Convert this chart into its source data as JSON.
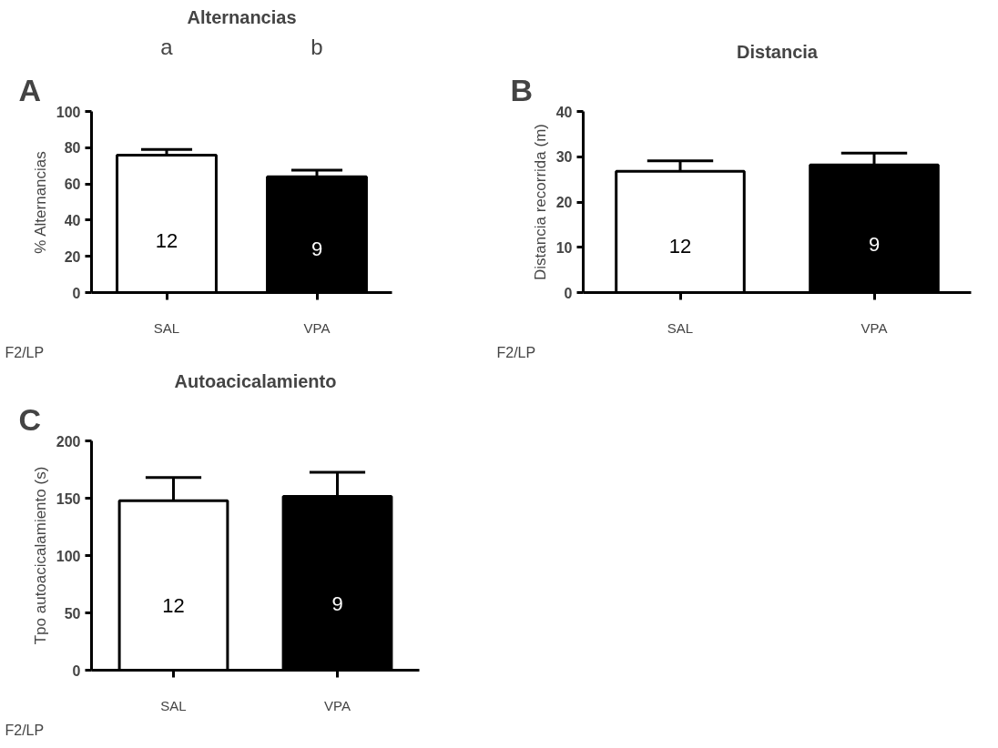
{
  "chart_data": [
    {
      "type": "bar",
      "title": "Alternancias",
      "ylabel": "% Alternancias",
      "categories": [
        "SAL",
        "VPA"
      ],
      "values": [
        75.9,
        63.9
      ],
      "colors": [
        "#ffffff",
        "#000000"
      ],
      "errors": [
        [
          75.9,
          79.0
        ],
        [
          63.9,
          67.6
        ]
      ],
      "ylim": [
        0,
        100
      ],
      "yticks": [
        0,
        20,
        40,
        60,
        80,
        100
      ],
      "annotations": [
        "A",
        "F2/LP",
        "a",
        "b",
        "12",
        "9"
      ]
    },
    {
      "type": "bar",
      "title": "Distancia",
      "ylabel": "Distancia recorrida (m)",
      "categories": [
        "SAL",
        "VPA"
      ],
      "values": [
        26.8,
        28.2
      ],
      "colors": [
        "#ffffff",
        "#000000"
      ],
      "errors": [
        [
          26.8,
          29.1
        ],
        [
          28.2,
          30.8
        ]
      ],
      "ylim": [
        0,
        40
      ],
      "yticks": [
        0,
        10,
        20,
        30,
        40
      ],
      "annotations": [
        "B",
        "F2/LP",
        "12",
        "9"
      ]
    },
    {
      "type": "bar",
      "title": "Autoacicalamiento",
      "ylabel": "Tpo autoacicalamiento (s)",
      "categories": [
        "SAL",
        "VPA"
      ],
      "values": [
        147.8,
        151.6
      ],
      "colors": [
        "#ffffff",
        "#000000"
      ],
      "errors": [
        [
          147.8,
          168.0
        ],
        [
          151.6,
          172.7
        ]
      ],
      "ylim": [
        0,
        200
      ],
      "yticks": [
        0,
        50,
        100,
        150,
        200
      ],
      "annotations": [
        "C",
        "F2/LP",
        "12",
        "9"
      ]
    }
  ]
}
